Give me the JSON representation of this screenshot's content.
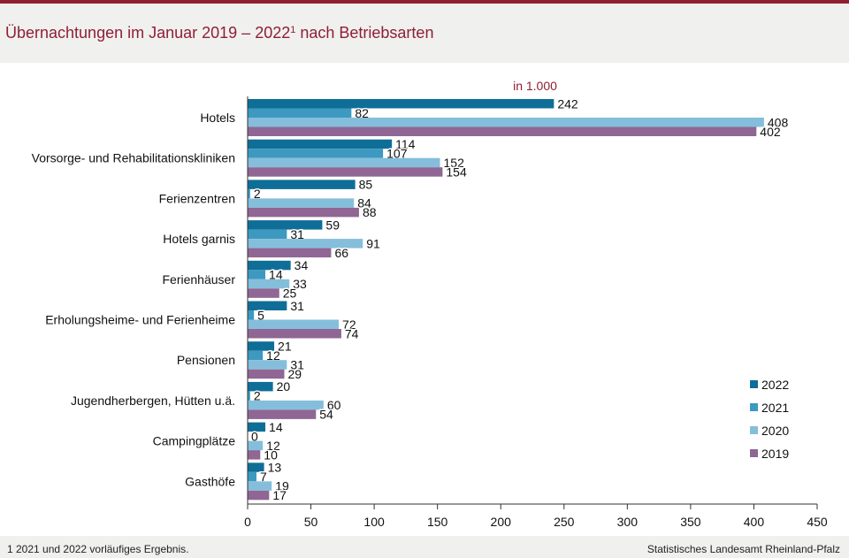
{
  "header": {
    "title_main": "Übernachtungen im Januar 2019 – 2022",
    "title_sup": "1",
    "title_rest": " nach Betriebsarten"
  },
  "footer": {
    "footnote": "1 2021 und 2022 vorläufiges Ergebnis.",
    "source": "Statistisches Landesamt Rheinland-Pfalz"
  },
  "colors": {
    "2022": "#0f6e97",
    "2021": "#3d99c0",
    "2020": "#85bedb",
    "2019": "#8f6694",
    "accent": "#8f1f33"
  },
  "chart_data": {
    "type": "bar",
    "orientation": "horizontal",
    "unit_label": "in 1.000",
    "xlim": [
      0,
      450
    ],
    "xticks": [
      0,
      50,
      100,
      150,
      200,
      250,
      300,
      350,
      400,
      450
    ],
    "grid": false,
    "legend_position": "right",
    "categories": [
      "Hotels",
      "Vorsorge- und Rehabilitationskliniken",
      "Ferienzentren",
      "Hotels garnis",
      "Ferienhäuser",
      "Erholungsheime- und Ferienheime",
      "Pensionen",
      "Jugendherbergen, Hütten u.ä.",
      "Campingplätze",
      "Gasthöfe"
    ],
    "series": [
      {
        "name": "2022",
        "values": [
          242,
          114,
          85,
          59,
          34,
          31,
          21,
          20,
          14,
          13
        ]
      },
      {
        "name": "2021",
        "values": [
          82,
          107,
          2,
          31,
          14,
          5,
          12,
          2,
          0,
          7
        ]
      },
      {
        "name": "2020",
        "values": [
          408,
          152,
          84,
          91,
          33,
          72,
          31,
          60,
          12,
          19
        ]
      },
      {
        "name": "2019",
        "values": [
          402,
          154,
          88,
          66,
          25,
          74,
          29,
          54,
          10,
          17
        ]
      }
    ]
  }
}
